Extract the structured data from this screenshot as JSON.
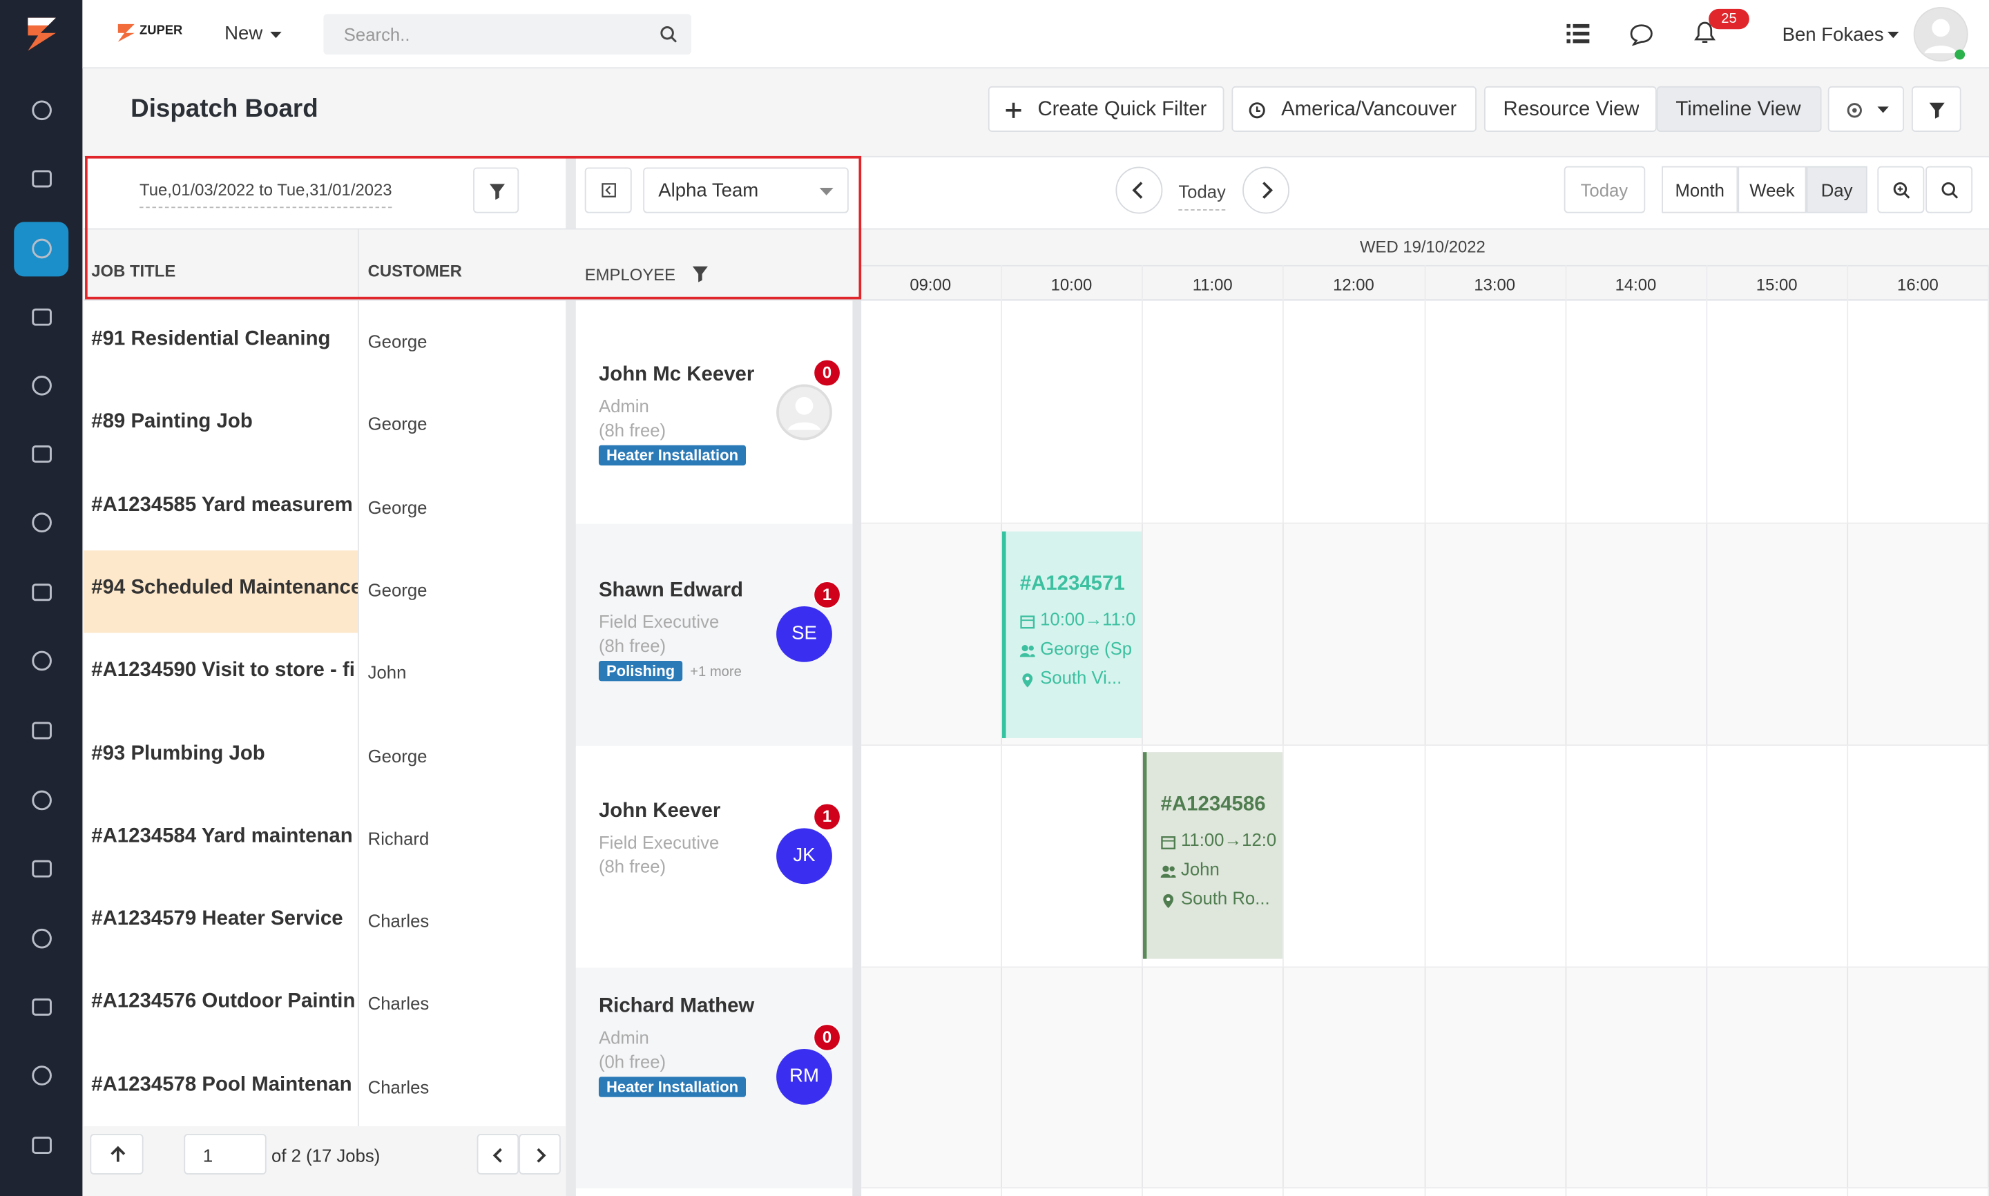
{
  "header": {
    "logo": "ZUPER",
    "new_button": "New",
    "search_placeholder": "Search..",
    "notification_count": "25",
    "user_name": "Ben Fokaes"
  },
  "page": {
    "title": "Dispatch Board",
    "buttons": [
      "Create Quick Filter",
      "America/Vancouver",
      "Resource View",
      "Timeline View"
    ]
  },
  "filters": {
    "date_range": "Tue,01/03/2022 to Tue,31/01/2023",
    "team": "Alpha Team"
  },
  "navigation": {
    "today_center": "Today",
    "today": "Today",
    "views": [
      "Month",
      "Week",
      "Day"
    ]
  },
  "columns": {
    "job_title": "JOB TITLE",
    "customer": "CUSTOMER",
    "employee": "EMPLOYEE"
  },
  "timeline": {
    "date": "WED 19/10/2022",
    "hours": [
      "09:00",
      "10:00",
      "11:00",
      "12:00",
      "13:00",
      "14:00",
      "15:00",
      "16:00"
    ]
  },
  "jobs": [
    {
      "title": "#91 Residential Cleaning",
      "customer": "George"
    },
    {
      "title": "#89 Painting Job",
      "customer": "George"
    },
    {
      "title": "#A1234585 Yard measurem",
      "customer": "George"
    },
    {
      "title": "#94 Scheduled Maintenance",
      "customer": "George"
    },
    {
      "title": "#A1234590 Visit to store - fi",
      "customer": "John"
    },
    {
      "title": "#93 Plumbing Job",
      "customer": "George"
    },
    {
      "title": "#A1234584 Yard maintenan",
      "customer": "Richard"
    },
    {
      "title": "#A1234579 Heater Service",
      "customer": "Charles"
    },
    {
      "title": "#A1234576 Outdoor Paintin",
      "customer": "Charles"
    },
    {
      "title": "#A1234578 Pool Maintenan",
      "customer": "Charles"
    }
  ],
  "pagination": {
    "page": "1",
    "summary": "of 2 (17 Jobs)"
  },
  "employees": [
    {
      "name": "John Mc Keever",
      "role": "Admin",
      "free": "(8h free)",
      "count": "0",
      "tags": [
        "Heater Installation"
      ]
    },
    {
      "name": "Shawn Edward",
      "role": "Field Executive",
      "free": "(8h free)",
      "count": "1",
      "avatar": "SE",
      "tags": [
        "Polishing"
      ],
      "more": "+1 more"
    },
    {
      "name": "John Keever",
      "role": "Field Executive",
      "free": "(8h free)",
      "count": "1",
      "avatar": "JK"
    },
    {
      "name": "Richard Mathew",
      "role": "Admin",
      "free": "(0h free)",
      "count": "0",
      "avatar": "RM",
      "tags": [
        "Heater Installation"
      ]
    }
  ],
  "events": [
    {
      "id": "#A1234571",
      "time": "10:00→11:0",
      "customer": "George (Sp",
      "location": "South Vi..."
    },
    {
      "id": "#A1234586",
      "time": "11:00→12:0",
      "customer": "John",
      "location": "South Ro..."
    }
  ]
}
